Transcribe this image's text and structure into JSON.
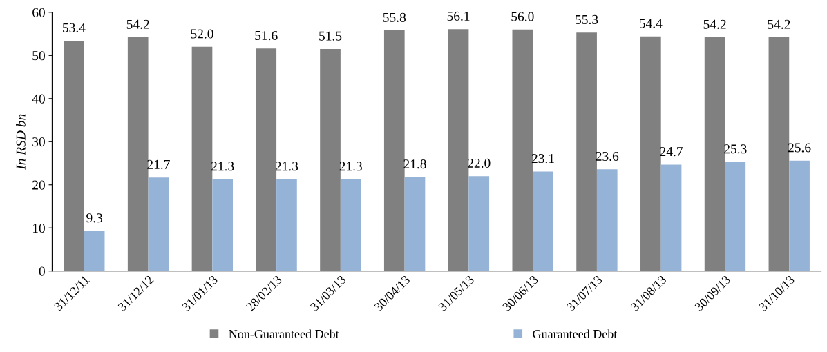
{
  "chart_data": {
    "type": "bar",
    "ylabel": "In RSD bn",
    "categories": [
      "31/12/11",
      "31/12/12",
      "31/01/13",
      "28/02/13",
      "31/03/13",
      "30/04/13",
      "31/05/13",
      "30/06/13",
      "31/07/13",
      "31/08/13",
      "30/09/13",
      "31/10/13"
    ],
    "series": [
      {
        "name": "Non-Guaranteed Debt",
        "color": "#808080",
        "values": [
          53.4,
          54.2,
          52.0,
          51.6,
          51.5,
          55.8,
          56.1,
          56.0,
          55.3,
          54.4,
          54.2,
          54.2
        ],
        "value_labels": [
          "53.4",
          "54.2",
          "52.0",
          "51.6",
          "51.5",
          "55.8",
          "56.1",
          "56.0",
          "55.3",
          "54.4",
          "54.2",
          "54.2"
        ]
      },
      {
        "name": "Guaranteed Debt",
        "color": "#95b3d7",
        "values": [
          9.3,
          21.7,
          21.3,
          21.3,
          21.3,
          21.8,
          22.0,
          23.1,
          23.6,
          24.7,
          25.3,
          25.6
        ],
        "value_labels": [
          "9.3",
          "21.7",
          "21.3",
          "21.3",
          "21.3",
          "21.8",
          "22.0",
          "23.1",
          "23.6",
          "24.7",
          "25.3",
          "25.6"
        ]
      }
    ],
    "ylim": [
      0,
      60
    ],
    "yticks": [
      0,
      10,
      20,
      30,
      40,
      50,
      60
    ],
    "grid": false,
    "legend": "bottom"
  }
}
